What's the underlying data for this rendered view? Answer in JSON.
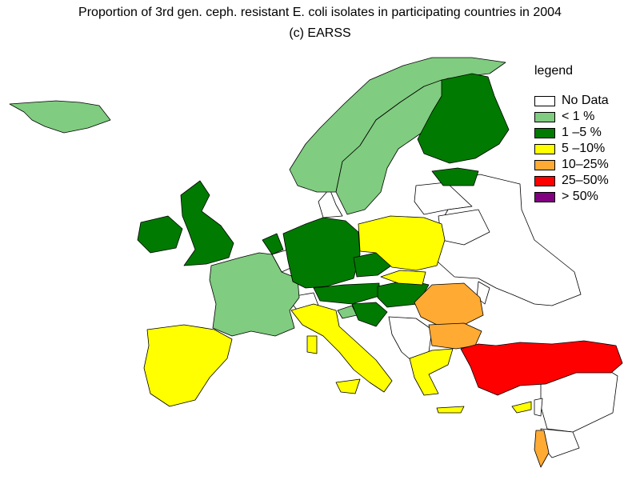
{
  "title": "Proportion of 3rd gen. ceph. resistant E. coli isolates in participating countries in 2004",
  "subtitle": "(c) EARSS",
  "legend": {
    "title": "legend",
    "items": [
      {
        "label": "No Data",
        "color": "#ffffff"
      },
      {
        "label": "<  1 %",
        "color": "#80cc80"
      },
      {
        "label": "1  –5  %",
        "color": "#007a00"
      },
      {
        "label": "5  –10%",
        "color": "#ffff00"
      },
      {
        "label": "10–25%",
        "color": "#ffaa33"
      },
      {
        "label": "25–50%",
        "color": "#ff0000"
      },
      {
        "label": ">  50%",
        "color": "#800080"
      }
    ]
  },
  "countries": [
    {
      "name": "Iceland",
      "category": "<  1 %"
    },
    {
      "name": "Norway",
      "category": "<  1 %"
    },
    {
      "name": "Sweden",
      "category": "<  1 %"
    },
    {
      "name": "France",
      "category": "<  1 %"
    },
    {
      "name": "Slovenia",
      "category": "<  1 %"
    },
    {
      "name": "Finland",
      "category": "1  –5  %"
    },
    {
      "name": "Estonia",
      "category": "1  –5  %"
    },
    {
      "name": "Ireland",
      "category": "1  –5  %"
    },
    {
      "name": "United Kingdom",
      "category": "1  –5  %"
    },
    {
      "name": "Netherlands",
      "category": "1  –5  %"
    },
    {
      "name": "Germany",
      "category": "1  –5  %"
    },
    {
      "name": "Czech Republic",
      "category": "1  –5  %"
    },
    {
      "name": "Austria",
      "category": "1  –5  %"
    },
    {
      "name": "Hungary",
      "category": "1  –5  %"
    },
    {
      "name": "Croatia",
      "category": "1  –5  %"
    },
    {
      "name": "Poland",
      "category": "5  –10%"
    },
    {
      "name": "Slovakia",
      "category": "5  –10%"
    },
    {
      "name": "Italy",
      "category": "5  –10%"
    },
    {
      "name": "Spain",
      "category": "5  –10%"
    },
    {
      "name": "Portugal",
      "category": "5  –10%"
    },
    {
      "name": "Greece",
      "category": "5  –10%"
    },
    {
      "name": "Malta",
      "category": "5  –10%"
    },
    {
      "name": "Cyprus",
      "category": "5  –10%"
    },
    {
      "name": "Romania",
      "category": "10–25%"
    },
    {
      "name": "Bulgaria",
      "category": "10–25%"
    },
    {
      "name": "Israel",
      "category": "10–25%"
    },
    {
      "name": "Turkey",
      "category": "25–50%"
    }
  ]
}
